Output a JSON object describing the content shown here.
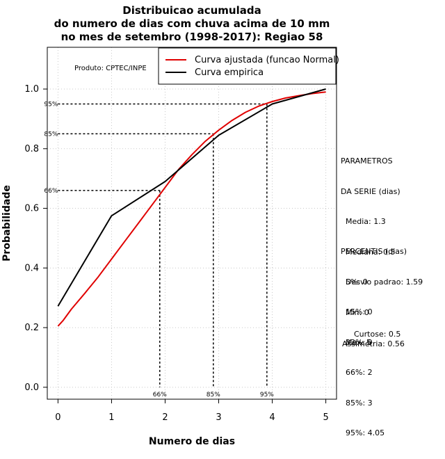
{
  "chart_data": {
    "type": "line",
    "title": [
      "Distribuicao acumulada",
      "do numero de dias com chuva acima de 10 mm",
      "no mes de setembro (1998-2017): Regiao 58"
    ],
    "xlabel": "Numero de dias",
    "ylabel": "Probabilidade",
    "xlim": [
      -0.2,
      5.2
    ],
    "ylim": [
      -0.04,
      1.14
    ],
    "xticks": [
      "0",
      "1",
      "2",
      "3",
      "4",
      "5"
    ],
    "yticks": [
      "0.0",
      "0.2",
      "0.4",
      "0.6",
      "0.8",
      "1.0"
    ],
    "product_label": "Produto: CPTEC/INPE",
    "legend": {
      "position": "top-right"
    },
    "series": [
      {
        "name": "Curva ajustada (funcao Normal)",
        "color": "#e00000",
        "x": [
          0,
          0.1,
          0.25,
          0.5,
          0.75,
          1.0,
          1.25,
          1.5,
          1.75,
          2.0,
          2.25,
          2.5,
          2.75,
          3.0,
          3.25,
          3.5,
          3.75,
          4.0,
          4.25,
          4.5,
          4.75,
          5.0
        ],
        "y": [
          0.205,
          0.225,
          0.262,
          0.315,
          0.37,
          0.43,
          0.49,
          0.55,
          0.61,
          0.67,
          0.73,
          0.78,
          0.825,
          0.862,
          0.895,
          0.922,
          0.943,
          0.958,
          0.97,
          0.978,
          0.985,
          0.99
        ]
      },
      {
        "name": "Curva empirica",
        "color": "#000000",
        "x": [
          0,
          1,
          2,
          3,
          4,
          5
        ],
        "y": [
          0.272,
          0.575,
          0.69,
          0.845,
          0.95,
          1.0
        ]
      }
    ],
    "percentile_markers": [
      {
        "label": "66%",
        "x": 1.9,
        "y": 0.66
      },
      {
        "label": "85%",
        "x": 2.9,
        "y": 0.85
      },
      {
        "label": "95%",
        "x": 3.9,
        "y": 0.95
      }
    ]
  },
  "side_panel": {
    "parametros": [
      "PARAMETROS",
      "DA SERIE (dias)",
      "  Media: 1.3",
      "  Mediana: 0.5",
      "  Desvio padrao: 1.59",
      "  Min: 0",
      "  Max: 5"
    ],
    "percentis": [
      "PERCENTIS (dias)",
      "  5%: 0",
      "  15%: 0",
      "  33%: 0",
      "  66%: 2",
      "  85%: 3",
      "  95%: 4.05"
    ],
    "curtose": "Curtose: 0.5",
    "assimetria": "Assimetria: 0.56"
  }
}
